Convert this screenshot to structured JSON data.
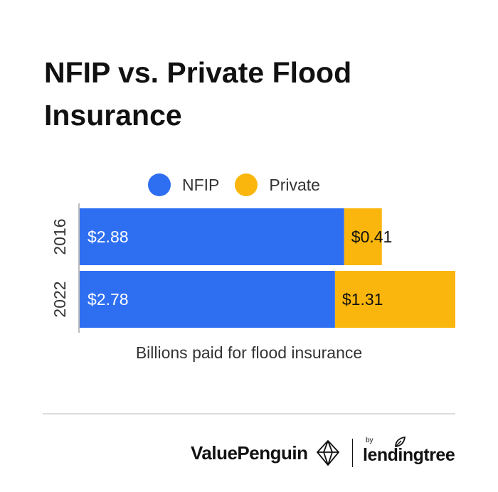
{
  "title": "NFIP vs. Private Flood Insurance",
  "colors": {
    "nfip": "#2e6ff2",
    "private": "#fab60c",
    "bar_text_nfip": "#ffffff",
    "bar_text_private": "#111111"
  },
  "chart_data": {
    "type": "bar",
    "orientation": "horizontal",
    "stacked": true,
    "title": "NFIP vs. Private Flood Insurance",
    "xlabel": "Billions paid for flood insurance",
    "ylabel": "",
    "categories": [
      "2016",
      "2022"
    ],
    "series": [
      {
        "name": "NFIP",
        "values": [
          2.88,
          2.78
        ],
        "labels": [
          "$2.88",
          "$2.78"
        ],
        "color": "#2e6ff2"
      },
      {
        "name": "Private",
        "values": [
          0.41,
          1.31
        ],
        "labels": [
          "$0.41",
          "$1.31"
        ],
        "color": "#fab60c"
      }
    ],
    "xlim": [
      0,
      4.09
    ],
    "grid": false,
    "legend": "top-center"
  },
  "footer": {
    "brand": "ValuePenguin",
    "by": "by",
    "partner": "lendingtree",
    "icon_brand": "penguin-logo-icon",
    "icon_partner": "leaf-icon"
  }
}
